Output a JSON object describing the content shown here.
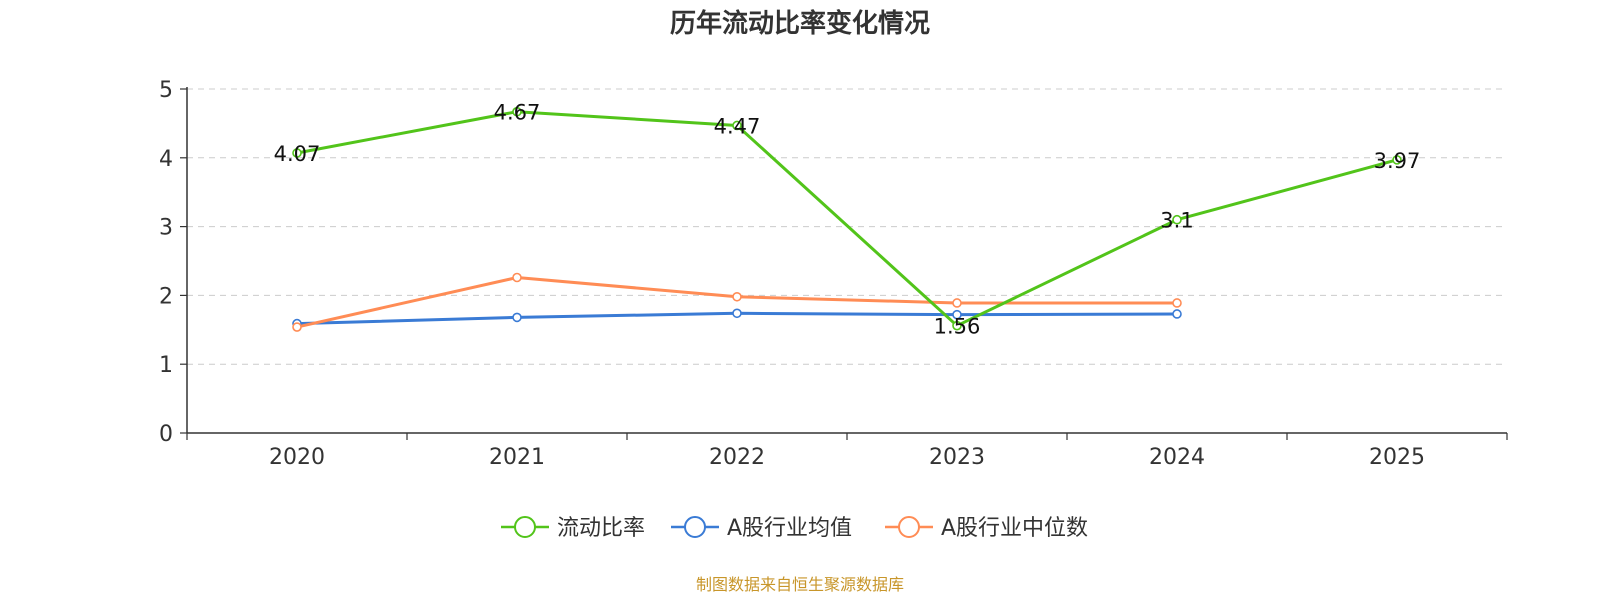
{
  "chart_data": {
    "type": "line",
    "title": "历年流动比率变化情况",
    "categories": [
      "2020",
      "2021",
      "2022",
      "2023",
      "2024",
      "2025"
    ],
    "ylim": [
      0,
      5
    ],
    "yticks": [
      "0",
      "1",
      "2",
      "3",
      "4",
      "5"
    ],
    "grid": true,
    "legend_position": "bottom-center",
    "series": [
      {
        "name": "流动比率",
        "color": "#52c41a",
        "values": [
          4.07,
          4.67,
          4.47,
          1.56,
          3.1,
          3.97
        ],
        "labels": [
          "4.07",
          "4.67",
          "4.47",
          "1.56",
          "3.1",
          "3.97"
        ]
      },
      {
        "name": "A股行业均值",
        "color": "#3a7bd5",
        "values": [
          1.59,
          1.68,
          1.74,
          1.72,
          1.73,
          null
        ]
      },
      {
        "name": "A股行业中位数",
        "color": "#ff8c55",
        "values": [
          1.54,
          2.26,
          1.98,
          1.89,
          1.89,
          null
        ]
      }
    ]
  },
  "source_text": "制图数据来自恒生聚源数据库",
  "source_color": "#c8962a"
}
